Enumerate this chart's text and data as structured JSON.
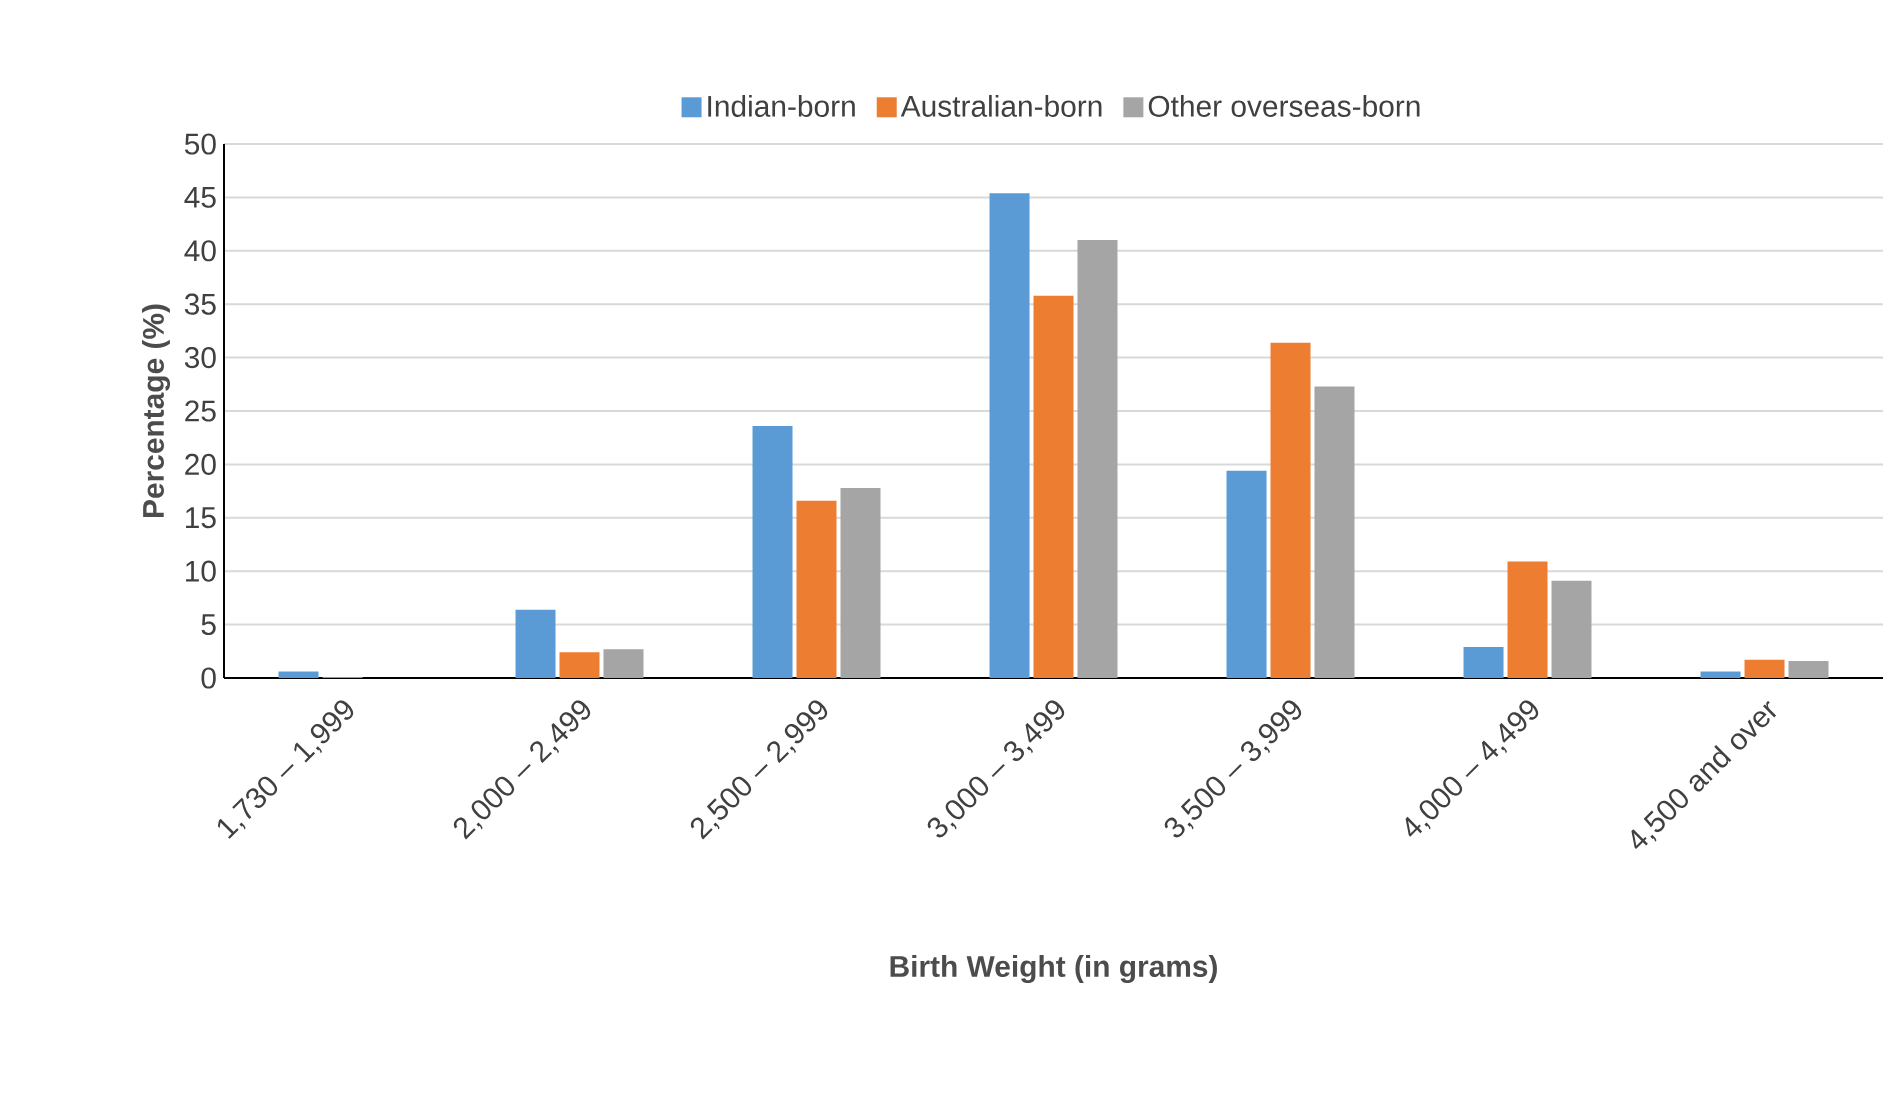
{
  "chart_data": {
    "type": "bar",
    "xlabel": "Birth Weight (in grams)",
    "ylabel": "Percentage (%)",
    "categories": [
      "1,730 – 1,999",
      "2,000 – 2,499",
      "2,500 – 2,999",
      "3,000 – 3,499",
      "3,500 – 3,999",
      "4,000 – 4,499",
      "4,500 and over"
    ],
    "series": [
      {
        "name": "Indian-born",
        "color": "#5b9bd5",
        "values": [
          0.6,
          6.4,
          23.6,
          45.4,
          19.4,
          2.9,
          0.6
        ]
      },
      {
        "name": "Australian-born",
        "color": "#ed7d31",
        "values": [
          0.1,
          2.4,
          16.6,
          35.8,
          31.4,
          10.9,
          1.7
        ]
      },
      {
        "name": "Other overseas-born",
        "color": "#a5a5a5",
        "values": [
          0,
          2.7,
          17.8,
          41.0,
          27.3,
          9.1,
          1.6
        ]
      }
    ],
    "ylim": [
      0,
      50
    ],
    "yticks": [
      0,
      5,
      10,
      15,
      20,
      25,
      30,
      35,
      40,
      45,
      50
    ],
    "grid": "y",
    "legend": "top"
  }
}
